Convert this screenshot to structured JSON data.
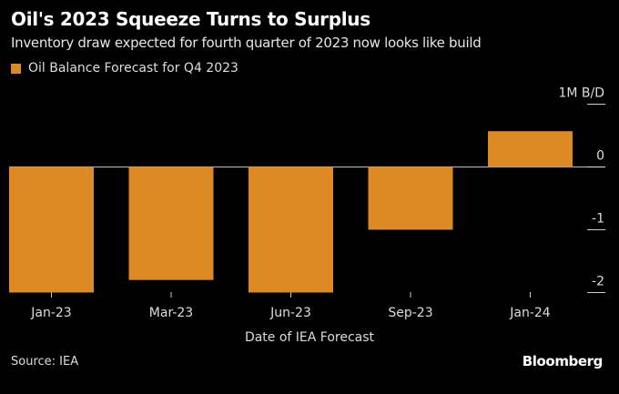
{
  "title": "Oil's 2023 Squeeze Turns to Surplus",
  "subtitle": "Inventory draw expected for fourth quarter of 2023 now looks like build",
  "source": "Source: IEA",
  "brand": "Bloomberg",
  "colors": {
    "bar": "#dd8a25",
    "background": "#000000",
    "zero_line": "#aaaaaa"
  },
  "chart_data": {
    "type": "bar",
    "title": "Oil's 2023 Squeeze Turns to Surplus",
    "legend": [
      "Oil Balance Forecast for Q4 2023"
    ],
    "legend_position": "top-left",
    "categories": [
      "Jan-23",
      "Mar-23",
      "Jun-23",
      "Sep-23",
      "Jan-24"
    ],
    "values": [
      -2.0,
      -1.8,
      -2.0,
      -1.0,
      0.57
    ],
    "xlabel": "Date of IEA Forecast",
    "ylabel": "1M B/D",
    "ylim": [
      -2,
      1
    ],
    "yticks": [
      1,
      0,
      -1,
      -2
    ],
    "ytick_labels": [
      "1M B/D",
      "0",
      "-1",
      "-2"
    ],
    "grid": false
  }
}
